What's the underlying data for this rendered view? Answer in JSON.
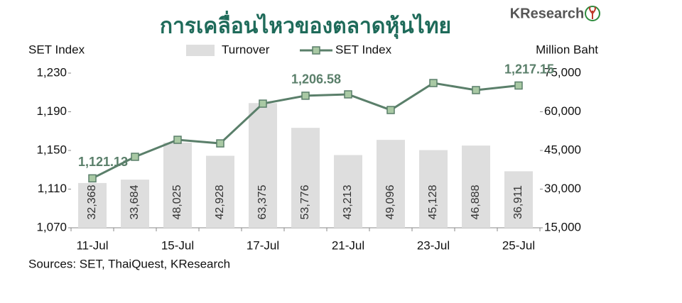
{
  "chart_data": {
    "type": "combo",
    "title": "การเคลื่อนไหวของตลาดหุ้นไทย",
    "logo": "KResearch",
    "y_label": "SET Index",
    "y2_label": "Million Baht",
    "source": "Sources: SET, ThaiQuest, KResearch",
    "categories": [
      "11-Jul",
      null,
      "15-Jul",
      null,
      "17-Jul",
      null,
      "21-Jul",
      null,
      "23-Jul",
      null,
      "25-Jul"
    ],
    "series": [
      {
        "name": "Turnover",
        "type": "bar",
        "axis": "y2",
        "color": "#dedede",
        "values": [
          32368,
          33684,
          48025,
          42928,
          63375,
          53776,
          43213,
          49096,
          45128,
          46888,
          36911
        ],
        "value_labels": [
          "32,368",
          "33,684",
          "48,025",
          "42,928",
          "63,375",
          "53,776",
          "43,213",
          "49,096",
          "45,128",
          "46,888",
          "36,911"
        ]
      },
      {
        "name": "SET Index",
        "type": "line",
        "color": "#5a7f6a",
        "marker_color": "#a9c9a4",
        "values": [
          1121.13,
          1143.4,
          1161.0,
          1157.3,
          1198.4,
          1206.58,
          1208.0,
          1191.8,
          1219.7,
          1212.4,
          1217.15
        ],
        "value_labels": [
          "1,121.13",
          null,
          null,
          null,
          null,
          "1,206.58",
          null,
          null,
          null,
          null,
          "1,217.15"
        ]
      }
    ],
    "ylim": [
      1070,
      1230
    ],
    "yticks": [
      {
        "value": 1070,
        "label": "1,070"
      },
      {
        "value": 1110,
        "label": "1,110"
      },
      {
        "value": 1150,
        "label": "1,150"
      },
      {
        "value": 1190,
        "label": "1,190"
      },
      {
        "value": 1230,
        "label": "1,230"
      }
    ],
    "y2lim": [
      15000,
      75000
    ],
    "y2ticks": [
      {
        "value": 15000,
        "label": "15,000"
      },
      {
        "value": 30000,
        "label": "30,000"
      },
      {
        "value": 45000,
        "label": "45,000"
      },
      {
        "value": 60000,
        "label": "60,000"
      },
      {
        "value": 75000,
        "label": "75,000"
      }
    ]
  }
}
